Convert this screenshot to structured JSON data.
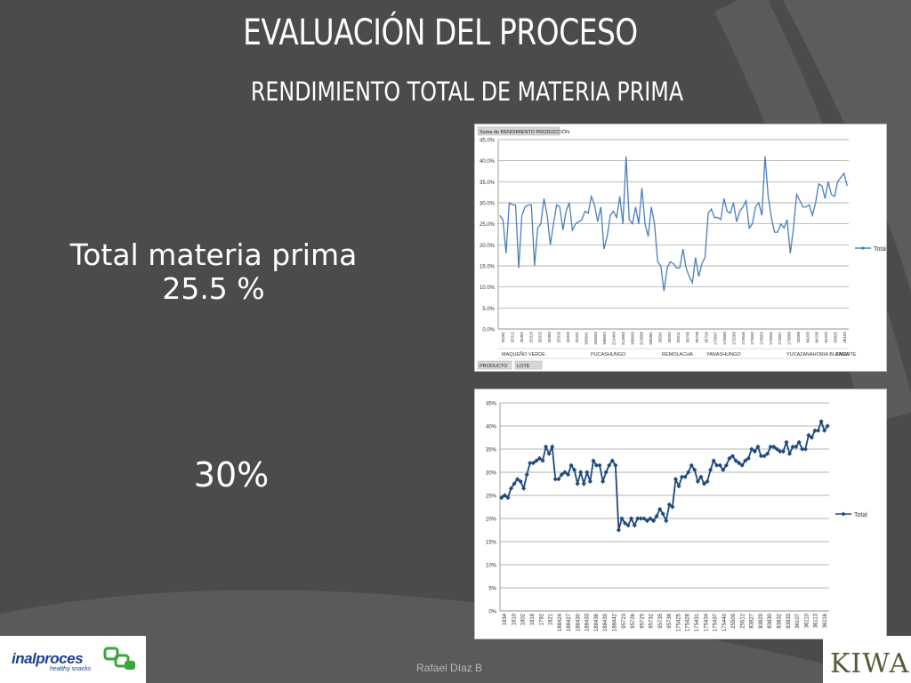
{
  "slide": {
    "title": "EVALUACIÓN DEL PROCESO",
    "subtitle": "RENDIMIENTO  TOTAL DE MATERIA PRIMA",
    "stat_label_line1": "Total materia prima",
    "stat_label_line2": "25.5 %",
    "stat_big": "30%",
    "author": "Rafael Díaz B",
    "logo_left_name": "inalproces",
    "logo_left_tagline": "healthy snacks",
    "logo_right_name": "KIWA"
  },
  "chart_data": [
    {
      "type": "line",
      "title": "Suma de RENDIMIENTO PRODUCCIÓN",
      "ylim": [
        0,
        45
      ],
      "y_ticks": [
        "0.0%",
        "5.0%",
        "10.0%",
        "15.0%",
        "20.0%",
        "25.0%",
        "30.0%",
        "35.0%",
        "40.0%",
        "45.0%"
      ],
      "grid": true,
      "legend_position": "right",
      "x_tick_labels": [
        "25281",
        "25312",
        "26302",
        "25315",
        "26315",
        "26303",
        "25318",
        "26339",
        "25331",
        "183641",
        "183653",
        "188652",
        "213404",
        "213602",
        "188603",
        "213608",
        "188381",
        "30291",
        "30292",
        "30211",
        "30736",
        "95738",
        "95720",
        "173647",
        "173650",
        "173203",
        "173646",
        "173652",
        "173653",
        "173655",
        "173657",
        "173660",
        "25500",
        "84233",
        "84238",
        "84232",
        "83825",
        "36103"
      ],
      "group_labels": [
        "MAQUEÑO VERDE",
        "PUCASHUNGO",
        "REMOLACHA",
        "YANASHUNGO",
        "YUCA",
        "ZANAHORIA BLANCA",
        "CAMOTE"
      ],
      "filter_buttons": [
        "PRODUCTO",
        "LOTE"
      ],
      "series": [
        {
          "name": "Total",
          "color": "#4a7ebb",
          "values": [
            27,
            26,
            18,
            30,
            29.5,
            29.5,
            14.5,
            27,
            29,
            29.5,
            29.5,
            15,
            24,
            25,
            31,
            27,
            20,
            25,
            29.5,
            29,
            23.5,
            28,
            30,
            23.5,
            25,
            25.5,
            26,
            28,
            27.5,
            31.5,
            29.5,
            25.5,
            29,
            19,
            22,
            27,
            28,
            26.5,
            31.5,
            25,
            41,
            26,
            25,
            29,
            25,
            33.5,
            25,
            22,
            29,
            25,
            16,
            15,
            9,
            14.5,
            16,
            15.5,
            14.5,
            14.5,
            19,
            14.5,
            12.5,
            11,
            17,
            12.5,
            15.5,
            17,
            27.5,
            28.5,
            26.5,
            26.5,
            26,
            31,
            28,
            27.5,
            30,
            25.5,
            28,
            29,
            30.5,
            24,
            25,
            29,
            30,
            27,
            41,
            31.5,
            26.5,
            23,
            23,
            25,
            24,
            26,
            18,
            24,
            32,
            30.5,
            29,
            29,
            29.5,
            27,
            30,
            34.5,
            34,
            31,
            35,
            32,
            31.5,
            35,
            36,
            37,
            34
          ]
        }
      ]
    },
    {
      "type": "line",
      "ylim": [
        0,
        45
      ],
      "y_ticks": [
        "0%",
        "5%",
        "10%",
        "15%",
        "20%",
        "25%",
        "30%",
        "35%",
        "40%",
        "45%"
      ],
      "grid": true,
      "legend_position": "right",
      "x_tick_labels": [
        "1834",
        "1810",
        "1802",
        "1818",
        "1792",
        "1821",
        "188424",
        "188427",
        "188430",
        "188433",
        "188436",
        "188439",
        "188442",
        "95723",
        "95726",
        "95729",
        "95732",
        "95735",
        "95738",
        "175425",
        "175428",
        "175431",
        "175434",
        "175437",
        "175440",
        "25509",
        "25512",
        "83827",
        "83829",
        "83830",
        "83832",
        "83833",
        "36107",
        "36110",
        "36113",
        "36116"
      ],
      "series": [
        {
          "name": "Total",
          "color": "#1f497d",
          "values": [
            24.5,
            25,
            24.5,
            26.5,
            27.5,
            28.5,
            28,
            26.5,
            29.5,
            32,
            32,
            32.5,
            33,
            32.5,
            35.5,
            34,
            35.5,
            28.5,
            28.5,
            29.5,
            30,
            29.5,
            31.5,
            30.5,
            27.5,
            30,
            27.5,
            30,
            28,
            32.5,
            31.5,
            31.5,
            28,
            30,
            31.5,
            32.5,
            31.5,
            17.5,
            20,
            19,
            18.5,
            20,
            18.5,
            20,
            20,
            20,
            19.5,
            20,
            19.5,
            20.5,
            22,
            21,
            19.5,
            23,
            22.5,
            28.5,
            27,
            29,
            29,
            30,
            31.5,
            30.5,
            28,
            29,
            27.5,
            28,
            30.5,
            32.5,
            31.5,
            31.5,
            30.5,
            31.5,
            33,
            33.5,
            32.5,
            32,
            31.5,
            32.5,
            33,
            35,
            34.5,
            35.5,
            33.5,
            33.5,
            34,
            35.5,
            35.5,
            35,
            34.5,
            34.5,
            36.5,
            34,
            35.5,
            35.5,
            36.5,
            35,
            35,
            38,
            37.5,
            39,
            39,
            41,
            39,
            40
          ]
        }
      ]
    }
  ]
}
